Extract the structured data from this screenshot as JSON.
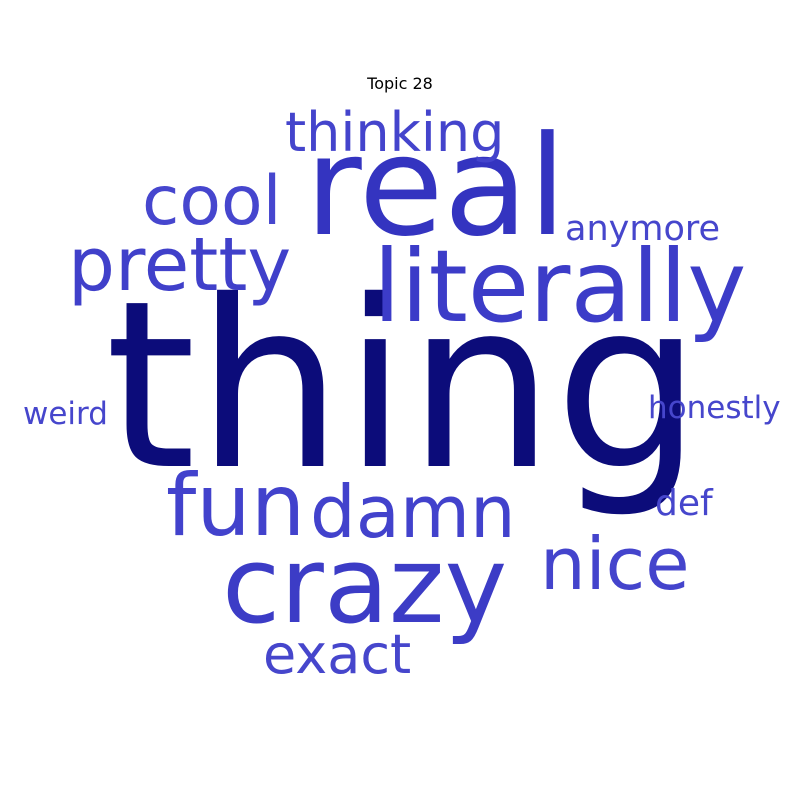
{
  "figure": {
    "title": "Topic 28",
    "background": "#ffffff"
  },
  "words": [
    {
      "id": "thing",
      "text": "thing",
      "color": "#0c0c7a"
    },
    {
      "id": "real",
      "text": "real",
      "color": "#3434c0"
    },
    {
      "id": "literally",
      "text": "literally",
      "color": "#3c3cc8"
    },
    {
      "id": "crazy",
      "text": "crazy",
      "color": "#3c3cc6"
    },
    {
      "id": "fun",
      "text": "fun",
      "color": "#4242cc"
    },
    {
      "id": "damn",
      "text": "damn",
      "color": "#4242cc"
    },
    {
      "id": "pretty",
      "text": "pretty",
      "color": "#4040ca"
    },
    {
      "id": "cool",
      "text": "cool",
      "color": "#4646ce"
    },
    {
      "id": "nice",
      "text": "nice",
      "color": "#4444cc"
    },
    {
      "id": "thinking",
      "text": "thinking",
      "color": "#4444cc"
    },
    {
      "id": "exact",
      "text": "exact",
      "color": "#4646cc"
    },
    {
      "id": "anymore",
      "text": "anymore",
      "color": "#4646cc"
    },
    {
      "id": "weird",
      "text": "weird",
      "color": "#4646cc"
    },
    {
      "id": "honestly",
      "text": "honestly",
      "color": "#4646cc"
    },
    {
      "id": "def",
      "text": "def",
      "color": "#4646cc"
    }
  ]
}
